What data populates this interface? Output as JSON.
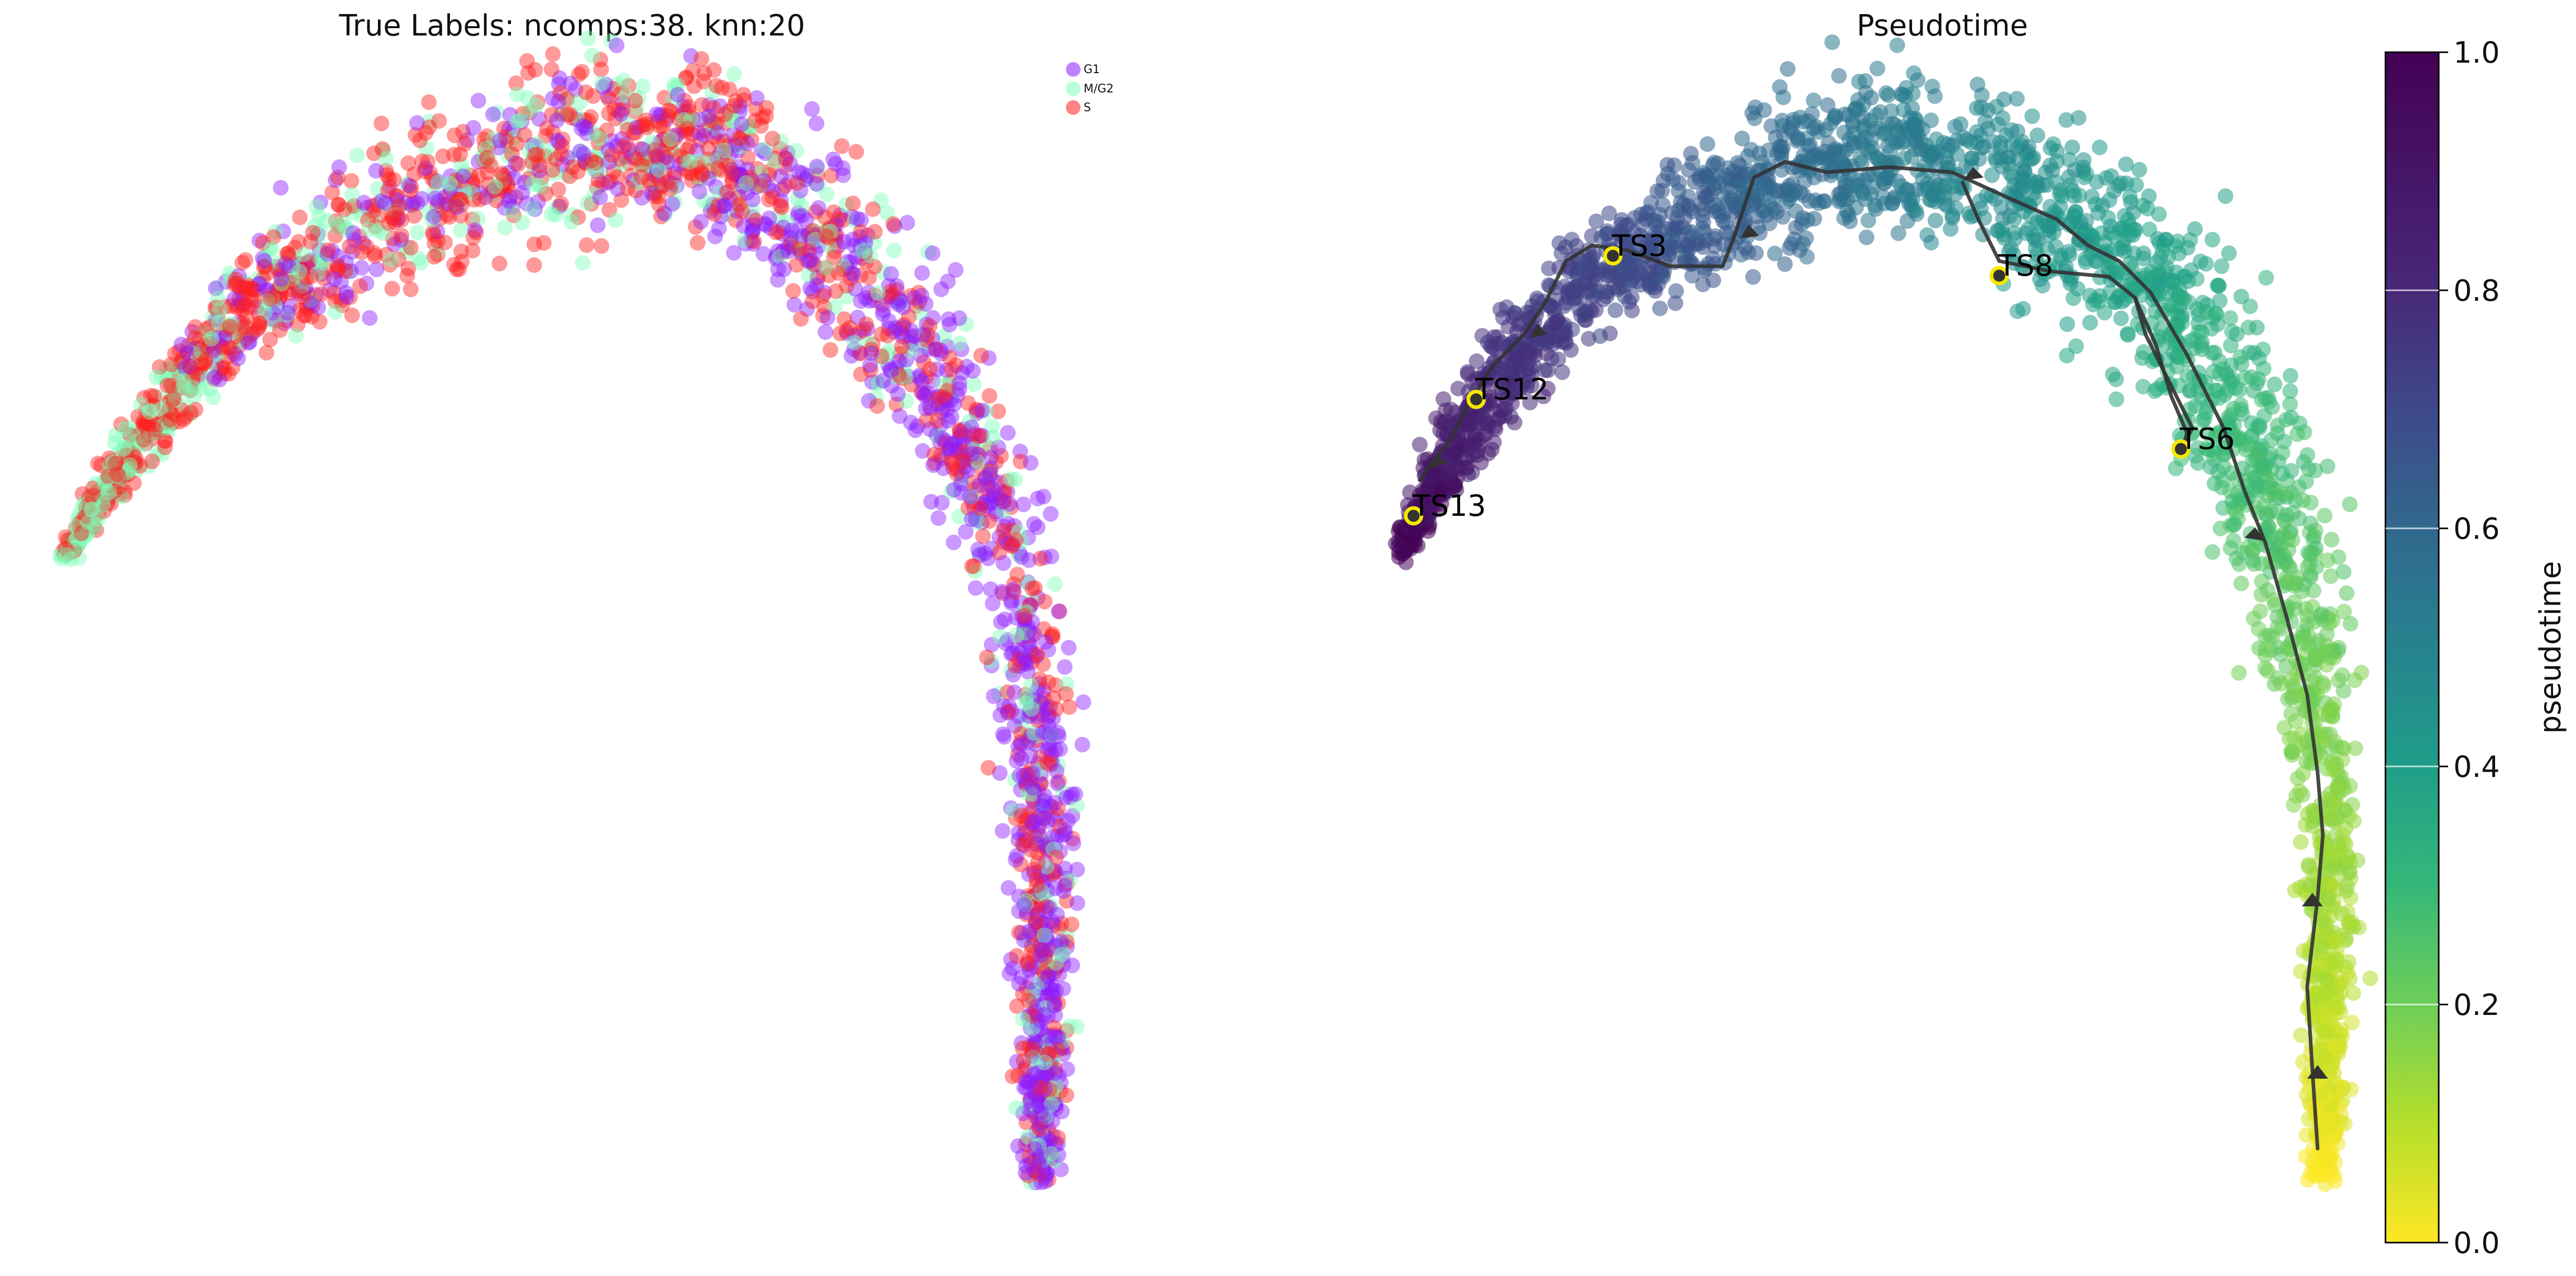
{
  "chart_data": [
    {
      "type": "scatter",
      "title": "True Labels: ncomps:38. knn:20",
      "legend": {
        "placement": "top-right",
        "entries": [
          {
            "label": "G1",
            "color": "#8b1cff"
          },
          {
            "label": "M/G2",
            "color": "#7dffb8"
          },
          {
            "label": "S",
            "color": "#ff1f1f"
          }
        ]
      },
      "grid": false,
      "axes_visible": false
    },
    {
      "type": "scatter",
      "title": "Pseudotime",
      "colormap": "viridis_r",
      "colorbar": {
        "label": "pseudotime",
        "range": [
          0.0,
          1.0
        ],
        "ticks": [
          "0.0",
          "0.2",
          "0.4",
          "0.6",
          "0.8",
          "1.0"
        ]
      },
      "terminal_states": [
        "TS3",
        "TS8",
        "TS12",
        "TS6",
        "TS13"
      ],
      "grid": false,
      "axes_visible": false
    }
  ]
}
